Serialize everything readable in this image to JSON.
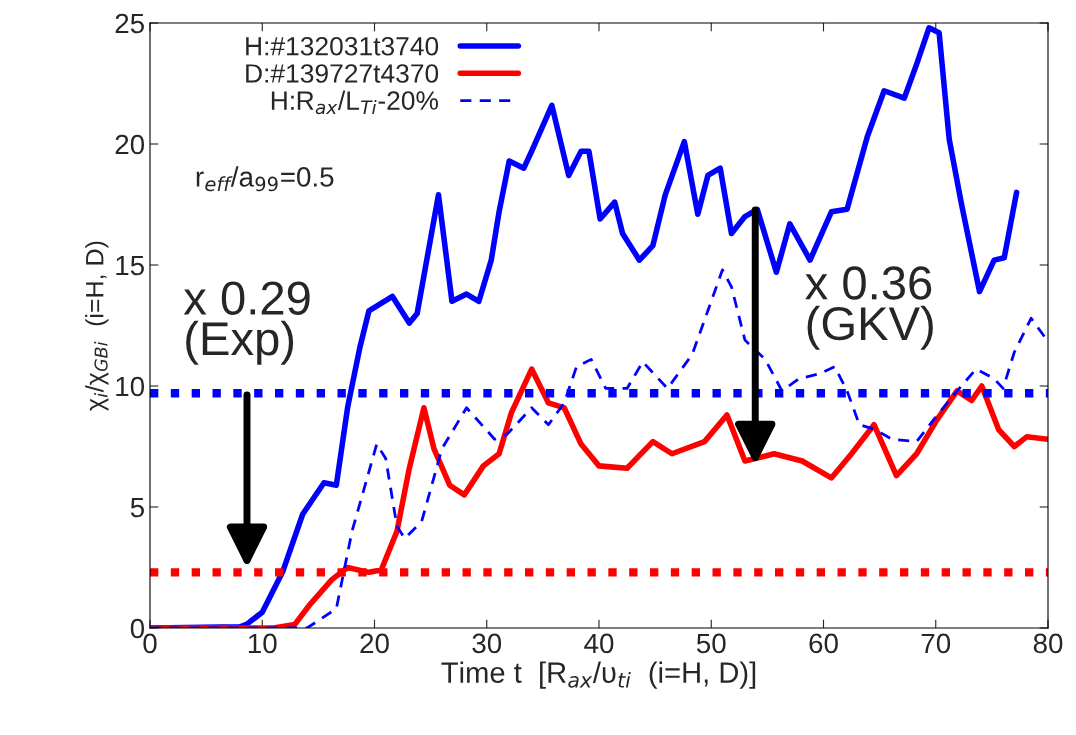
{
  "chart_data": {
    "type": "line",
    "xlabel": "Time t  [R$_{ax}$/υ$_{ti}$  (i=H, D)]",
    "ylabel": "χ$_{i}$/χ$_{GBi}$  (i=H, D)",
    "xlim": [
      0,
      80
    ],
    "ylim": [
      0,
      25
    ],
    "xticks": [
      0,
      10,
      20,
      30,
      40,
      50,
      60,
      70,
      80
    ],
    "yticks": [
      0,
      5,
      10,
      15,
      20,
      25
    ],
    "grid": false,
    "legend": "top left",
    "series": [
      {
        "name": "H:#132031t3740",
        "color": "#0000ff",
        "line_style": "solid",
        "x": [
          0,
          8,
          8.6,
          10,
          11.8,
          13.6,
          15.5,
          16.6,
          17.6,
          18.7,
          19.5,
          21.6,
          23.1,
          23.8,
          25.7,
          26.9,
          28.2,
          29.3,
          30.4,
          31.1,
          32.0,
          33.3,
          34.0,
          35.8,
          37.3,
          38.4,
          39.1,
          40.1,
          41.4,
          42.1,
          43.6,
          44.8,
          45.9,
          47.6,
          48.8,
          49.7,
          50.8,
          51.8,
          53.0,
          54.1,
          55.8,
          57.0,
          58.8,
          60.7,
          62.1,
          63.9,
          65.4,
          67.2,
          68.3,
          69.4,
          70.3,
          71.2,
          72.3,
          73.9,
          75.2,
          76.1,
          77.2
        ],
        "values": [
          0,
          0.05,
          0.15,
          0.65,
          2.3,
          4.7,
          6.0,
          5.9,
          9.1,
          11.6,
          13.1,
          13.7,
          12.6,
          13.0,
          17.9,
          13.5,
          13.8,
          13.5,
          15.2,
          17.2,
          19.3,
          19.0,
          19.7,
          21.6,
          18.7,
          19.7,
          19.7,
          16.9,
          17.6,
          16.3,
          15.2,
          15.8,
          17.9,
          20.1,
          17.1,
          18.7,
          19.0,
          16.3,
          17.0,
          17.3,
          14.7,
          16.7,
          15.2,
          17.2,
          17.3,
          20.3,
          22.2,
          21.9,
          23.3,
          24.8,
          24.6,
          20.2,
          17.5,
          13.9,
          15.2,
          15.3,
          18.0
        ]
      },
      {
        "name": "D:#139727t4370",
        "color": "#ff0000",
        "line_style": "solid",
        "x": [
          0,
          11,
          12.9,
          14.3,
          16.2,
          17.6,
          19.5,
          20.6,
          22.0,
          23.1,
          24.4,
          25.3,
          26.7,
          28.0,
          29.7,
          31.1,
          32.2,
          34.0,
          35.5,
          36.9,
          38.4,
          40.0,
          42.5,
          44.8,
          46.5,
          49.4,
          51.4,
          53.0,
          55.6,
          58.1,
          60.7,
          62.5,
          64.5,
          66.5,
          68.3,
          70.1,
          71.9,
          73.2,
          74.1,
          75.6,
          77.0,
          78.1,
          80.0
        ],
        "values": [
          0,
          0,
          0.15,
          1.0,
          2.0,
          2.5,
          2.3,
          2.4,
          4.0,
          6.6,
          9.1,
          7.4,
          5.9,
          5.5,
          6.7,
          7.2,
          8.9,
          10.7,
          9.3,
          9.1,
          7.6,
          6.7,
          6.6,
          7.7,
          7.2,
          7.7,
          8.8,
          6.9,
          7.2,
          6.9,
          6.2,
          7.2,
          8.4,
          6.3,
          7.2,
          8.6,
          9.8,
          9.4,
          10.0,
          8.2,
          7.5,
          7.9,
          7.8
        ]
      },
      {
        "name": "H:R$_{ax}$/L$_{Ti}$-20%",
        "color": "#0000ff",
        "line_style": "dashed",
        "x": [
          0,
          14.0,
          16.6,
          18.0,
          20.2,
          21.0,
          22.0,
          22.7,
          24.2,
          26.0,
          28.2,
          30.7,
          31.8,
          34.0,
          35.5,
          36.9,
          38.0,
          39.3,
          40.6,
          42.5,
          43.9,
          46.1,
          48.3,
          51.0,
          51.8,
          53.0,
          54.8,
          56.3,
          57.8,
          59.6,
          61.0,
          62.1,
          63.2,
          64.6,
          66.1,
          68.3,
          69.8,
          71.9,
          73.6,
          75.2,
          76.0,
          77.0,
          78.5,
          79.9
        ],
        "values": [
          0,
          0,
          0.8,
          4.0,
          7.6,
          7.0,
          4.2,
          3.7,
          4.4,
          7.4,
          9.1,
          7.8,
          8.0,
          9.1,
          8.4,
          9.3,
          10.8,
          11.1,
          9.9,
          9.9,
          11.0,
          9.9,
          11.3,
          14.8,
          14.1,
          11.9,
          11.1,
          9.8,
          10.3,
          10.5,
          10.8,
          9.8,
          8.4,
          8.2,
          7.8,
          7.7,
          8.6,
          9.8,
          10.7,
          10.3,
          9.9,
          11.4,
          12.8,
          11.9
        ]
      }
    ],
    "ref_lines": [
      {
        "axis": "y",
        "value": 9.7,
        "color": "#0000ff",
        "line_style": "dotted"
      },
      {
        "axis": "y",
        "value": 2.3,
        "color": "#ff0000",
        "line_style": "dotted"
      }
    ],
    "annotations": [
      "r$_{eff}$/a$_{99}$=0.5",
      "x 0.29\n(Exp)",
      "x 0.36\n(GKV)"
    ]
  }
}
